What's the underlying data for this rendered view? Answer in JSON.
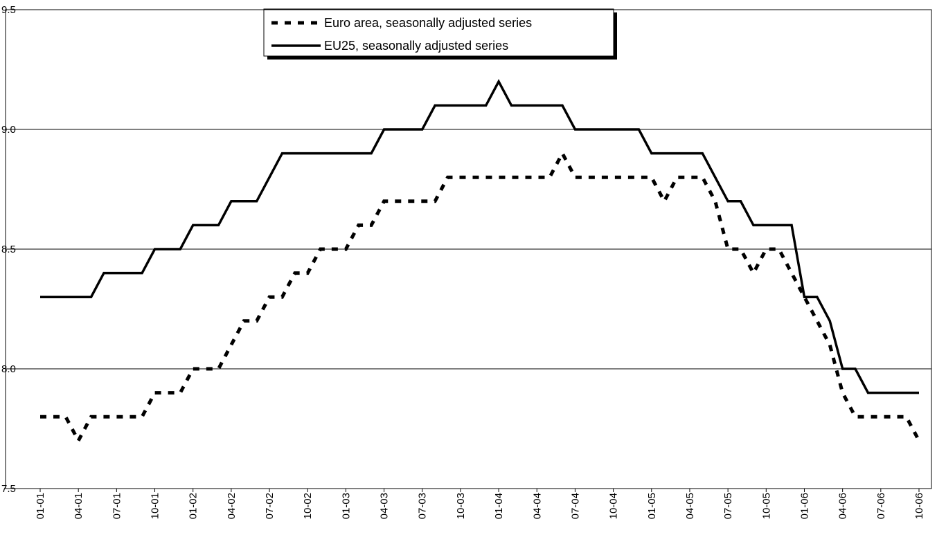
{
  "chart_data": {
    "type": "line",
    "categories": [
      "01-01",
      null,
      null,
      "04-01",
      null,
      null,
      "07-01",
      null,
      null,
      "10-01",
      null,
      null,
      "01-02",
      null,
      null,
      "04-02",
      null,
      null,
      "07-02",
      null,
      null,
      "10-02",
      null,
      null,
      "01-03",
      null,
      null,
      "04-03",
      null,
      null,
      "07-03",
      null,
      null,
      "10-03",
      null,
      null,
      "01-04",
      null,
      null,
      "04-04",
      null,
      null,
      "07-04",
      null,
      null,
      "10-04",
      null,
      null,
      "01-05",
      null,
      null,
      "04-05",
      null,
      null,
      "07-05",
      null,
      null,
      "10-05",
      null,
      null,
      "01-06",
      null,
      null,
      "04-06",
      null,
      null,
      "07-06",
      null,
      null,
      "10-06"
    ],
    "series": [
      {
        "name": "Euro area, seasonally adjusted series",
        "color": "#000000",
        "dash": true,
        "values": [
          7.8,
          7.8,
          7.8,
          7.7,
          7.8,
          7.8,
          7.8,
          7.8,
          7.8,
          7.9,
          7.9,
          7.9,
          8.0,
          8.0,
          8.0,
          8.1,
          8.2,
          8.2,
          8.3,
          8.3,
          8.4,
          8.4,
          8.5,
          8.5,
          8.5,
          8.6,
          8.6,
          8.7,
          8.7,
          8.7,
          8.7,
          8.7,
          8.8,
          8.8,
          8.8,
          8.8,
          8.8,
          8.8,
          8.8,
          8.8,
          8.8,
          8.9,
          8.8,
          8.8,
          8.8,
          8.8,
          8.8,
          8.8,
          8.8,
          8.7,
          8.8,
          8.8,
          8.8,
          8.7,
          8.5,
          8.5,
          8.4,
          8.5,
          8.5,
          8.4,
          8.3,
          8.2,
          8.1,
          7.9,
          7.8,
          7.8,
          7.8,
          7.8,
          7.8,
          7.7
        ]
      },
      {
        "name": "EU25, seasonally adjusted series",
        "color": "#000000",
        "dash": false,
        "values": [
          8.3,
          8.3,
          8.3,
          8.3,
          8.3,
          8.4,
          8.4,
          8.4,
          8.4,
          8.5,
          8.5,
          8.5,
          8.6,
          8.6,
          8.6,
          8.7,
          8.7,
          8.7,
          8.8,
          8.9,
          8.9,
          8.9,
          8.9,
          8.9,
          8.9,
          8.9,
          8.9,
          9.0,
          9.0,
          9.0,
          9.0,
          9.1,
          9.1,
          9.1,
          9.1,
          9.1,
          9.2,
          9.1,
          9.1,
          9.1,
          9.1,
          9.1,
          9.0,
          9.0,
          9.0,
          9.0,
          9.0,
          9.0,
          8.9,
          8.9,
          8.9,
          8.9,
          8.9,
          8.8,
          8.7,
          8.7,
          8.6,
          8.6,
          8.6,
          8.6,
          8.3,
          8.3,
          8.2,
          8.0,
          8.0,
          7.9,
          7.9,
          7.9,
          7.9,
          7.9
        ]
      }
    ],
    "ylim": [
      7.5,
      9.5
    ],
    "yticks": [
      {
        "value": 7.5,
        "label": "7.5"
      },
      {
        "value": 8,
        "label": "8.0"
      },
      {
        "value": 8.5,
        "label": "8.5"
      },
      {
        "value": 9,
        "label": "9.0"
      },
      {
        "value": 9.5,
        "label": "9.5"
      }
    ],
    "grid": true
  }
}
